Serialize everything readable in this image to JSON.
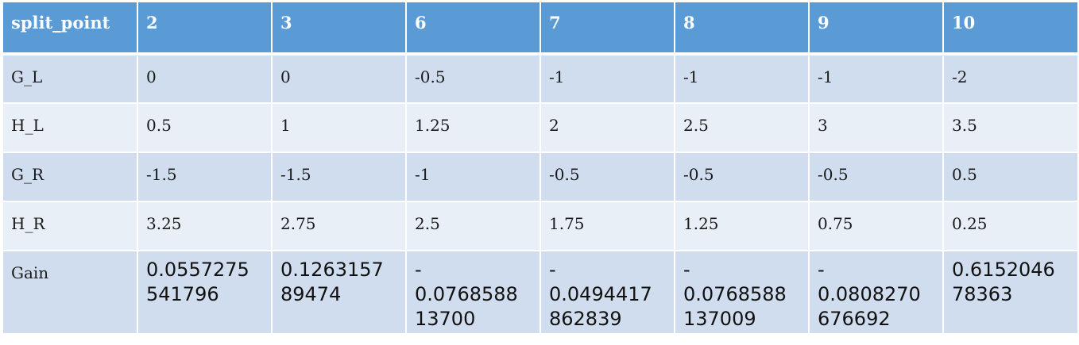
{
  "table": {
    "header": [
      "split_point",
      "2",
      "3",
      "6",
      "7",
      "8",
      "9",
      "10"
    ],
    "rows": [
      {
        "label": "G_L",
        "values": [
          "0",
          "0",
          "-0.5",
          "-1",
          "-1",
          "-1",
          "-2"
        ]
      },
      {
        "label": "H_L",
        "values": [
          "0.5",
          "1",
          "1.25",
          "2",
          "2.5",
          "3",
          "3.5"
        ]
      },
      {
        "label": "G_R",
        "values": [
          "-1.5",
          "-1.5",
          "-1",
          "-0.5",
          "-0.5",
          "-0.5",
          "0.5"
        ]
      },
      {
        "label": "H_R",
        "values": [
          "3.25",
          "2.75",
          "2.5",
          "1.75",
          "1.25",
          "0.75",
          "0.25"
        ]
      }
    ],
    "gain": {
      "label": "Gain",
      "values": [
        "0.0557275\n541796",
        "0.1263157\n89474",
        "-\n0.0768588\n13700",
        "-\n0.0494417\n862839",
        "-\n0.0768588\n137009",
        "-\n0.0808270\n676692",
        "0.6152046\n78363"
      ]
    }
  }
}
